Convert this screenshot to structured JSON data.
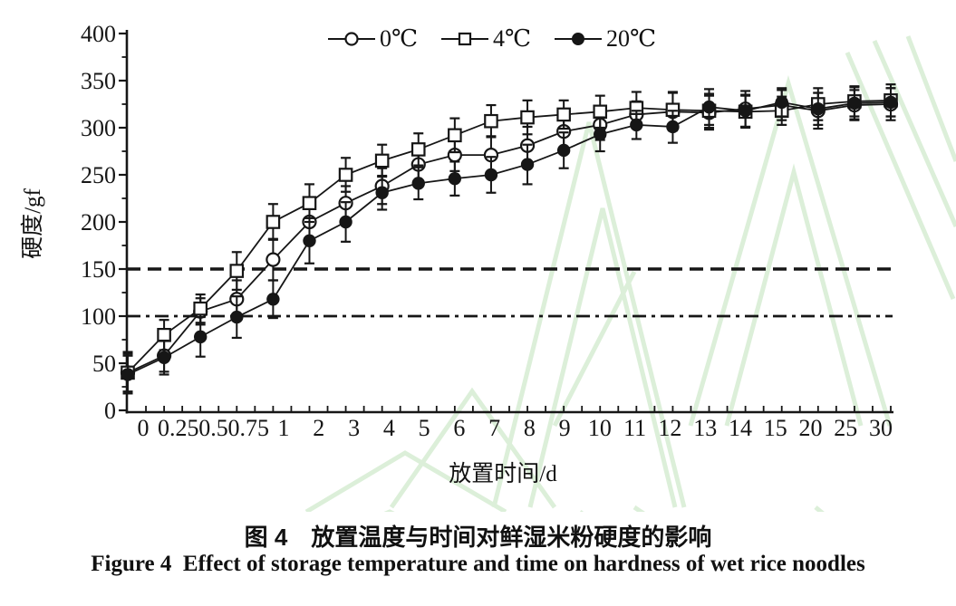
{
  "colors": {
    "ink": "#161616",
    "watermark": "#dcefd9",
    "background": "#ffffff"
  },
  "chart_data": {
    "type": "line",
    "title_zh": "图 4　放置温度与时间对鲜湿米粉硬度的影响",
    "title_en": "Figure 4  Effect of storage temperature and time on hardness of wet rice noodles",
    "xlabel": "放置时间/d",
    "ylabel": "硬度/gf",
    "ylim": [
      0,
      400
    ],
    "yticks": [
      0,
      50,
      100,
      150,
      200,
      250,
      300,
      350,
      400
    ],
    "grid": false,
    "legend_position": "top-center",
    "categories": [
      "0",
      "0.25",
      "0.5",
      "0.75",
      "1",
      "2",
      "3",
      "4",
      "5",
      "6",
      "7",
      "8",
      "9",
      "10",
      "11",
      "12",
      "13",
      "14",
      "15",
      "20",
      "25",
      "30"
    ],
    "reference_lines": [
      {
        "value": 150,
        "style": "dashed"
      },
      {
        "value": 100,
        "style": "dash-dot"
      }
    ],
    "series": [
      {
        "name": "0℃",
        "marker": "open-circle",
        "values": [
          40,
          58,
          105,
          118,
          160,
          200,
          220,
          238,
          261,
          271,
          271,
          281,
          296,
          303,
          314,
          317,
          316,
          320,
          324,
          318,
          324,
          325
        ],
        "errors": [
          20,
          17,
          14,
          20,
          22,
          18,
          18,
          19,
          18,
          17,
          20,
          20,
          18,
          16,
          14,
          20,
          18,
          19,
          16,
          19,
          16,
          17
        ]
      },
      {
        "name": "4℃",
        "marker": "open-square",
        "values": [
          40,
          80,
          108,
          148,
          200,
          220,
          250,
          265,
          277,
          292,
          307,
          311,
          314,
          317,
          321,
          319,
          318,
          317,
          318,
          325,
          328,
          329
        ],
        "errors": [
          22,
          16,
          15,
          20,
          19,
          20,
          18,
          17,
          17,
          18,
          17,
          18,
          15,
          17,
          17,
          19,
          18,
          17,
          15,
          17,
          16,
          17
        ]
      },
      {
        "name": "20℃",
        "marker": "filled-circle",
        "values": [
          38,
          56,
          78,
          99,
          118,
          180,
          200,
          231,
          241,
          246,
          250,
          261,
          276,
          293,
          303,
          301,
          322,
          318,
          327,
          320,
          326,
          327
        ],
        "errors": [
          20,
          18,
          21,
          22,
          20,
          24,
          21,
          18,
          17,
          18,
          19,
          21,
          19,
          18,
          15,
          17,
          19,
          17,
          15,
          17,
          17,
          15
        ]
      }
    ]
  }
}
